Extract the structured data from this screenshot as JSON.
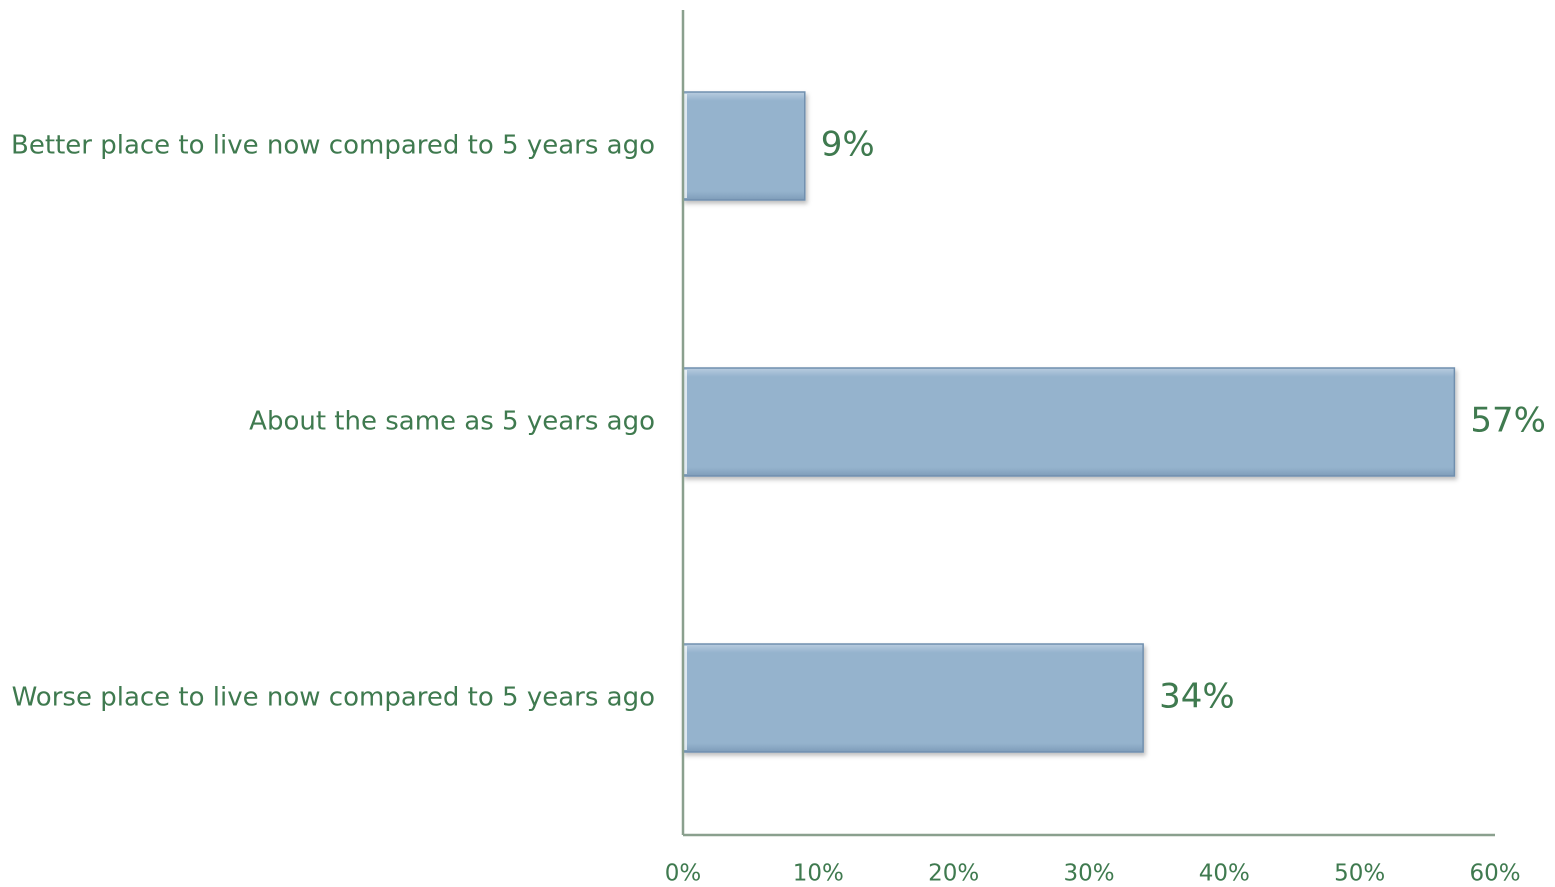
{
  "chart_data": {
    "type": "bar",
    "orientation": "horizontal",
    "categories": [
      "Better place to live now compared to 5 years ago",
      "About the same as 5 years ago",
      "Worse place to live now compared to 5 years ago"
    ],
    "values": [
      9,
      57,
      34
    ],
    "value_labels": [
      "9%",
      "57%",
      "34%"
    ],
    "xlim": [
      0,
      60
    ],
    "x_ticks": [
      0,
      10,
      20,
      30,
      40,
      50,
      60
    ],
    "x_tick_labels": [
      "0%",
      "10%",
      "20%",
      "30%",
      "40%",
      "50%",
      "60%"
    ],
    "title": "",
    "xlabel": "",
    "ylabel": "",
    "grid": false,
    "legend": "none",
    "colors": {
      "bar_fill": "#95b3cd",
      "bar_edge": "#6f8fae",
      "axis": "#8aa08e",
      "text": "#3f7a4f"
    }
  }
}
